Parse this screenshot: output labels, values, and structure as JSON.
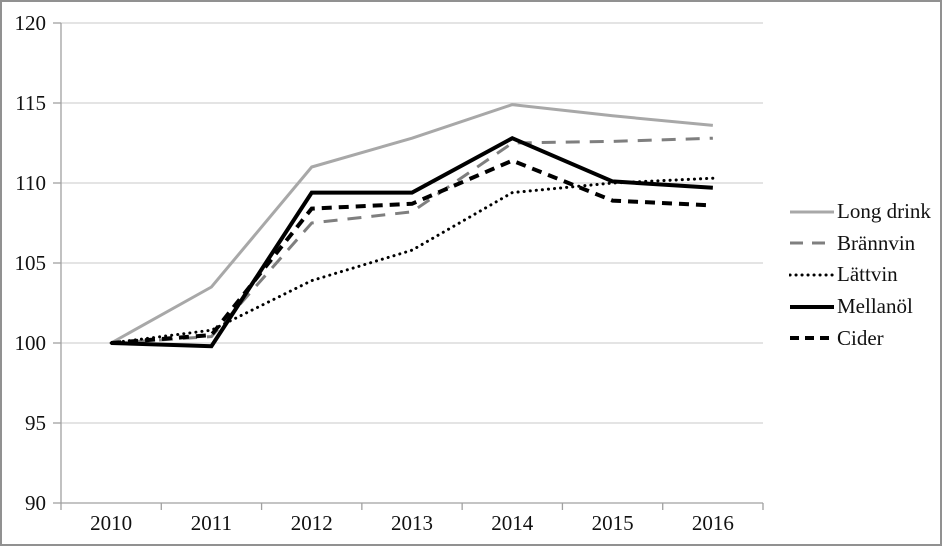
{
  "frame": {
    "background": "#ffffff",
    "border_color": "#919191"
  },
  "chart_data": {
    "type": "line",
    "title": "",
    "xlabel": "",
    "ylabel": "",
    "categories": [
      "2010",
      "2011",
      "2012",
      "2013",
      "2014",
      "2015",
      "2016"
    ],
    "series": [
      {
        "name": "Long drink",
        "values": [
          100,
          103.5,
          111.0,
          112.8,
          114.9,
          114.2,
          113.6
        ],
        "color": "#a8a8a8",
        "style": "solid",
        "width": 3
      },
      {
        "name": "Brännvin",
        "values": [
          100,
          100.4,
          107.5,
          108.2,
          112.5,
          112.6,
          112.8
        ],
        "color": "#7f7f7f",
        "style": "dashed",
        "width": 3
      },
      {
        "name": "Lättvin",
        "values": [
          100,
          100.8,
          103.9,
          105.8,
          109.4,
          110.0,
          110.3
        ],
        "color": "#000000",
        "style": "dotted",
        "width": 3
      },
      {
        "name": "Mellanöl",
        "values": [
          100,
          99.8,
          109.4,
          109.4,
          112.8,
          110.1,
          109.7
        ],
        "color": "#000000",
        "style": "solid",
        "width": 4
      },
      {
        "name": "Cider",
        "values": [
          100,
          100.5,
          108.4,
          108.7,
          111.4,
          108.9,
          108.6
        ],
        "color": "#000000",
        "style": "dashed-bold",
        "width": 4
      }
    ],
    "yticks": [
      90,
      95,
      100,
      105,
      110,
      115,
      120
    ],
    "ylim": [
      90,
      120
    ],
    "grid": true,
    "legend_position": "right",
    "grid_color": "#c8c8c8",
    "axis_color": "#a0a0a0",
    "text_color": "#111111"
  }
}
